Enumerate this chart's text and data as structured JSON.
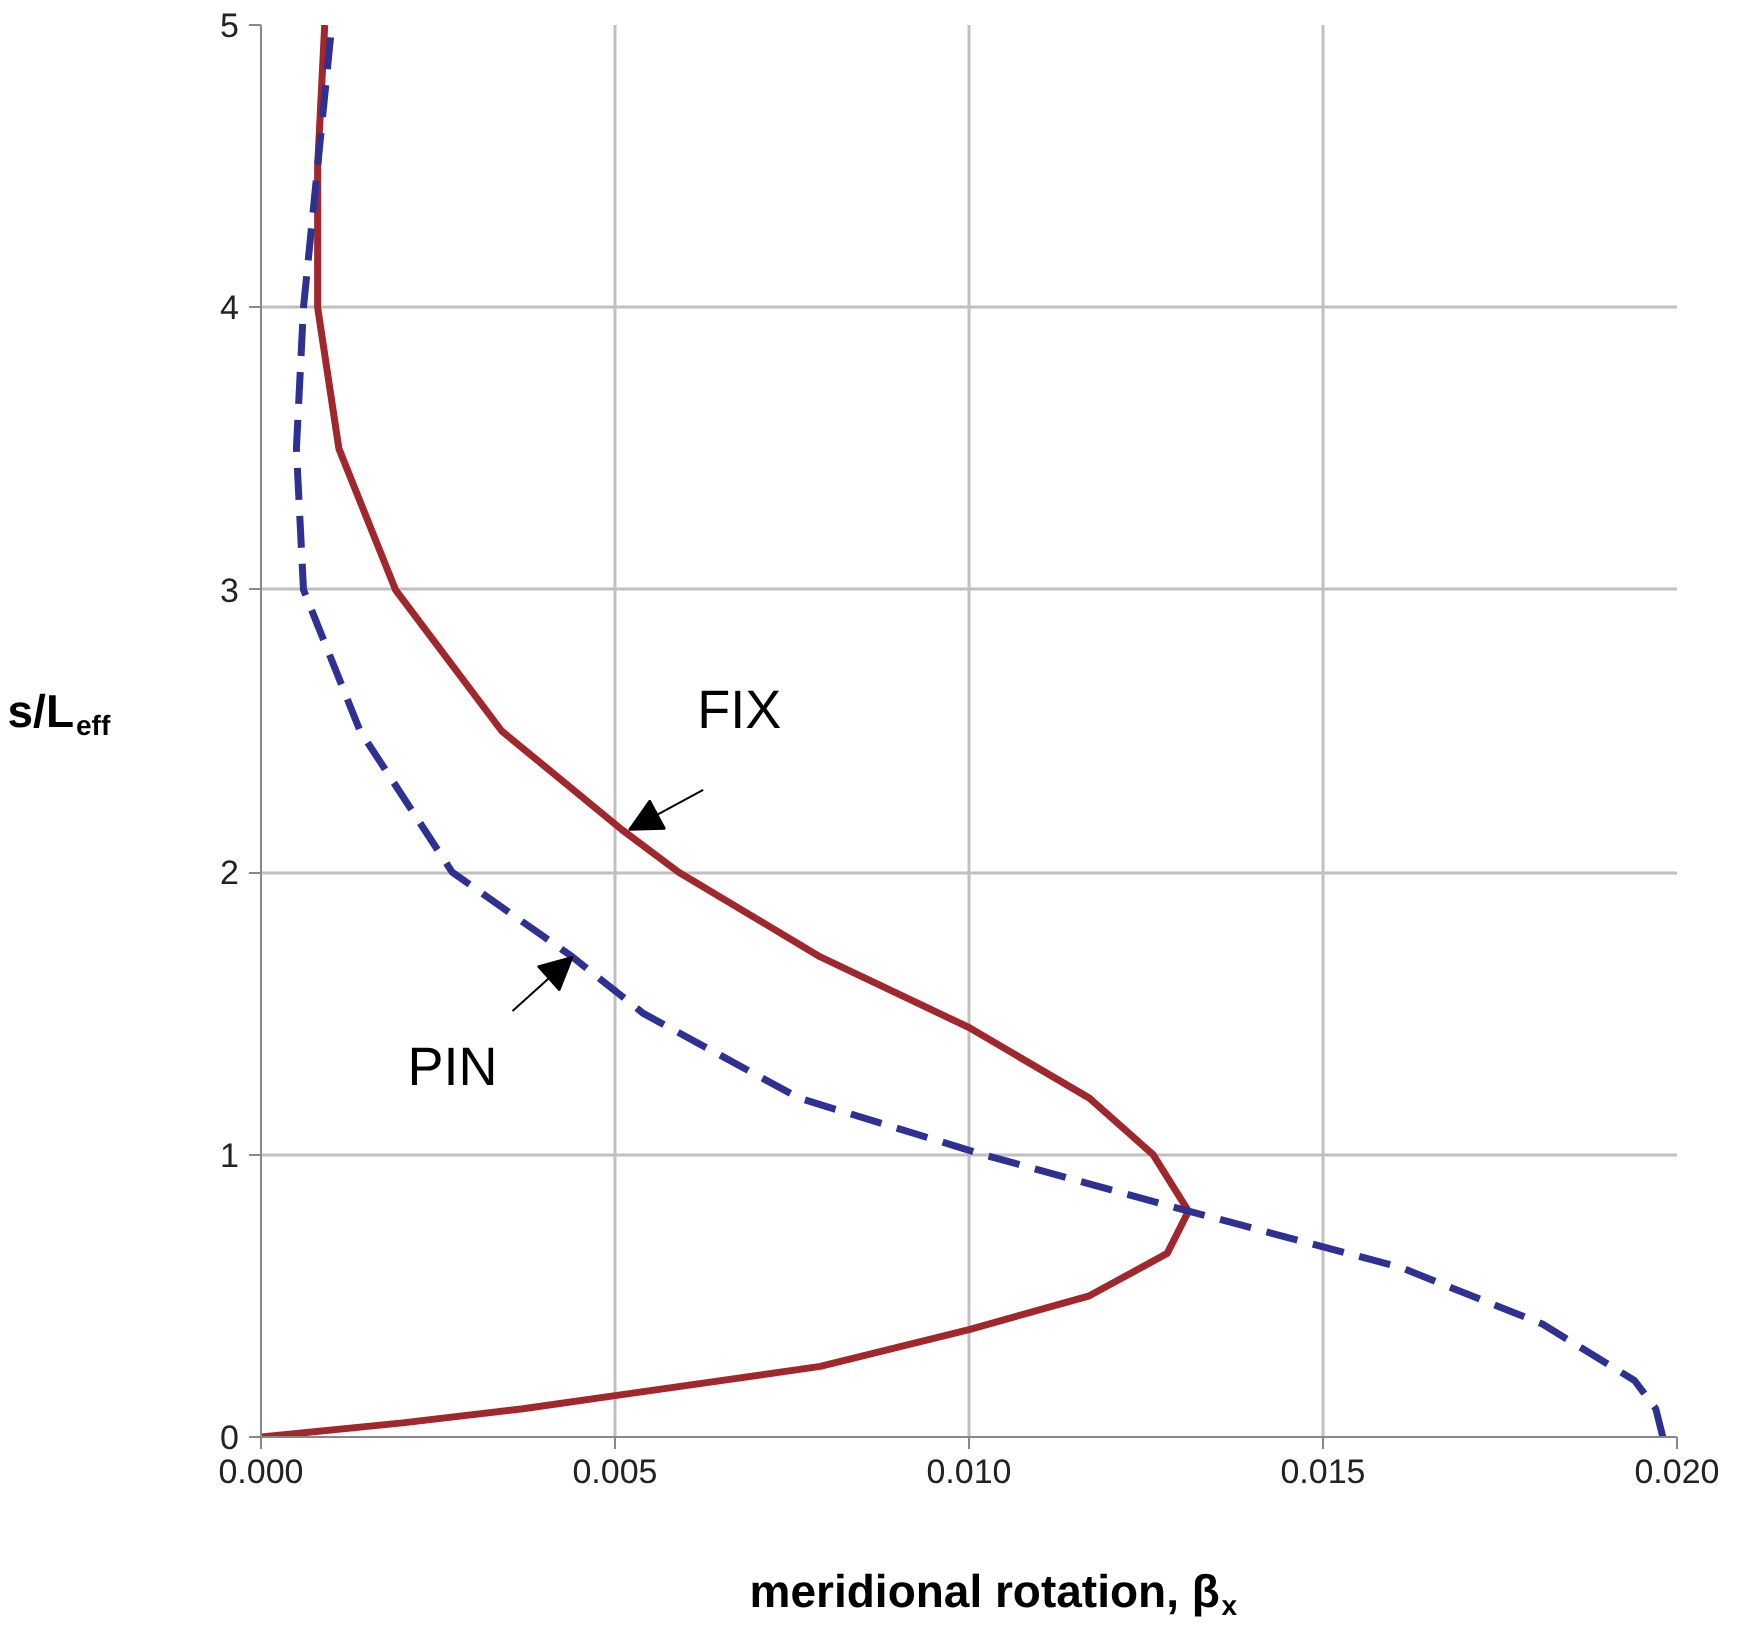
{
  "chart_data": {
    "type": "line",
    "xlabel": "meridional rotation, β$_{x}$",
    "ylabel": "s/L$_{eff}$",
    "xlim": [
      0,
      0.02
    ],
    "ylim": [
      0,
      5
    ],
    "xticks": [
      {
        "value": 0,
        "label": "0.000"
      },
      {
        "value": 0.005,
        "label": "0.005"
      },
      {
        "value": 0.01,
        "label": "0.010"
      },
      {
        "value": 0.015,
        "label": "0.015"
      },
      {
        "value": 0.02,
        "label": "0.020"
      }
    ],
    "yticks": [
      0,
      1,
      2,
      3,
      4,
      5
    ],
    "grid": true,
    "series": [
      {
        "color": "#a0282d",
        "line_style": "solid",
        "x": [
          0,
          0.002,
          0.0037,
          0.0051,
          0.0079,
          0.01,
          0.0117,
          0.0128,
          0.0131,
          0.0126,
          0.0117,
          0.01,
          0.0079,
          0.0059,
          0.0051,
          0.0034,
          0.0019,
          0.0011,
          0.0008,
          0.0008,
          0.0009
        ],
        "values": [
          0,
          0.05,
          0.1,
          0.15,
          0.25,
          0.38,
          0.5,
          0.65,
          0.8,
          1.0,
          1.2,
          1.45,
          1.7,
          2.0,
          2.15,
          2.5,
          3.0,
          3.5,
          4.0,
          4.5,
          5.0
        ]
      },
      {
        "color": "#2e3192",
        "line_style": "dashed",
        "x": [
          0.0198,
          0.0197,
          0.0194,
          0.0181,
          0.0161,
          0.0131,
          0.0102,
          0.0076,
          0.0054,
          0.0044,
          0.0027,
          0.0014,
          0.0006,
          0.0005,
          0.0006,
          0.0008,
          0.001
        ],
        "values": [
          0,
          0.1,
          0.2,
          0.4,
          0.6,
          0.8,
          1.0,
          1.2,
          1.5,
          1.7,
          2.0,
          2.5,
          3.0,
          3.5,
          4.0,
          4.5,
          5.0
        ]
      }
    ],
    "annotations": [
      {
        "text": "FIX",
        "x": 0.0052,
        "y": 2.15
      },
      {
        "text": "PIN",
        "x": 0.0044,
        "y": 1.7
      }
    ]
  }
}
